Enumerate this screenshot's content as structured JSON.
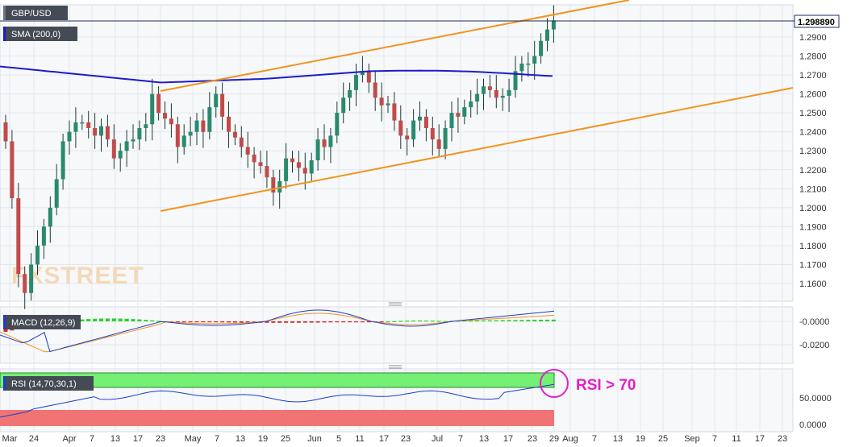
{
  "chart_data": {
    "type": "candlestick",
    "symbol": "GBP/USD",
    "sma_label": "SMA (200,0)",
    "macd_label": "MACD (12,26,9)",
    "rsi_label": "RSI (14,70,30,1)",
    "annotation": "RSI > 70",
    "watermark": "FXSTREET",
    "last_price": "1.298890",
    "price_ticks": [
      "1.2900",
      "1.2800",
      "1.2700",
      "1.2600",
      "1.2500",
      "1.2400",
      "1.2300",
      "1.2200",
      "1.2100",
      "1.2000",
      "1.1900",
      "1.1800",
      "1.1700",
      "1.1600"
    ],
    "macd_ticks": [
      "-0.0000",
      "-0.0200"
    ],
    "rsi_ticks": [
      "50.0000",
      "0.0000"
    ],
    "x_ticks": [
      "Mar",
      "24",
      "Apr",
      "7",
      "13",
      "17",
      "23",
      "May",
      "7",
      "13",
      "19",
      "25",
      "Jun",
      "5",
      "11",
      "17",
      "23",
      "Jul",
      "7",
      "13",
      "17",
      "23",
      "29",
      "Aug",
      "7",
      "13",
      "19",
      "25",
      "Sep",
      "7",
      "11",
      "17",
      "23"
    ],
    "colors": {
      "up": "#2a8a6e",
      "down": "#c14b4b",
      "sma": "#1c1cc8",
      "channel": "#f0941e",
      "macd_line": "#1c3ccc",
      "signal_line": "#f0941e",
      "hist_pos": "#26d126",
      "hist_neg": "#e02020",
      "rsi_overbought": "#74f074",
      "rsi_oversold": "#f07474",
      "annotation": "#e020c8"
    },
    "ohlc_close": [
      1.235,
      1.205,
      1.165,
      1.155,
      1.17,
      1.18,
      1.19,
      1.2,
      1.215,
      1.235,
      1.24,
      1.245,
      1.245,
      1.242,
      1.238,
      1.243,
      1.236,
      1.226,
      1.23,
      1.235,
      1.236,
      1.242,
      1.244,
      1.26,
      1.25,
      1.247,
      1.244,
      1.232,
      1.238,
      1.24,
      1.246,
      1.24,
      1.253,
      1.26,
      1.248,
      1.24,
      1.237,
      1.232,
      1.228,
      1.224,
      1.222,
      1.216,
      1.208,
      1.214,
      1.226,
      1.224,
      1.221,
      1.218,
      1.225,
      1.236,
      1.232,
      1.238,
      1.25,
      1.258,
      1.262,
      1.27,
      1.272,
      1.266,
      1.258,
      1.254,
      1.255,
      1.246,
      1.238,
      1.236,
      1.246,
      1.248,
      1.242,
      1.236,
      1.231,
      1.242,
      1.25,
      1.248,
      1.253,
      1.256,
      1.26,
      1.264,
      1.262,
      1.258,
      1.259,
      1.262,
      1.272,
      1.276,
      1.276,
      1.28,
      1.288,
      1.294,
      1.2988
    ]
  },
  "labels_rendered": true
}
